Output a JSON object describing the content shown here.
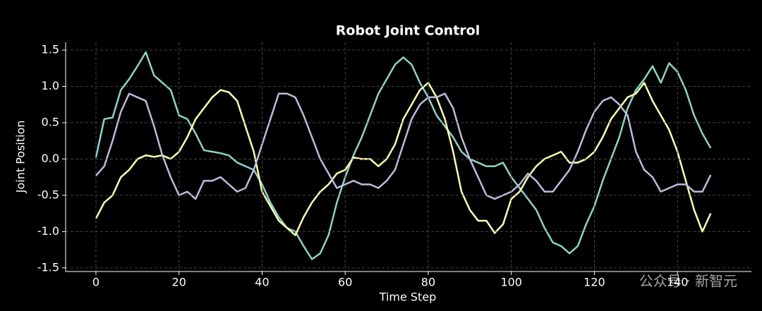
{
  "chart_data": {
    "type": "line",
    "title": "Robot Joint Control",
    "x_label": "Time Step",
    "y_label": "Joint Position",
    "watermark": "公众号 · 新智元",
    "x": [
      0,
      2,
      4,
      6,
      8,
      10,
      12,
      14,
      16,
      18,
      20,
      22,
      24,
      26,
      28,
      30,
      32,
      34,
      36,
      38,
      40,
      42,
      44,
      46,
      48,
      50,
      52,
      54,
      56,
      58,
      60,
      62,
      64,
      66,
      68,
      70,
      72,
      74,
      76,
      78,
      80,
      82,
      84,
      86,
      88,
      90,
      92,
      94,
      96,
      98,
      100,
      102,
      104,
      106,
      108,
      110,
      112,
      114,
      116,
      118,
      120,
      122,
      124,
      126,
      128,
      130,
      132,
      134,
      136,
      138,
      140,
      142,
      144,
      146,
      148
    ],
    "series": [
      {
        "color": "#8dd3c7",
        "values": [
          0.02,
          0.55,
          0.57,
          0.95,
          1.1,
          1.28,
          1.47,
          1.15,
          1.05,
          0.95,
          0.6,
          0.55,
          0.35,
          0.12,
          0.1,
          0.08,
          0.05,
          -0.05,
          -0.1,
          -0.15,
          -0.35,
          -0.6,
          -0.8,
          -0.95,
          -1.0,
          -1.2,
          -1.38,
          -1.3,
          -1.05,
          -0.6,
          -0.25,
          0.05,
          0.3,
          0.6,
          0.9,
          1.1,
          1.3,
          1.4,
          1.3,
          1.05,
          0.85,
          0.6,
          0.45,
          0.3,
          0.1,
          0.0,
          -0.05,
          -0.1,
          -0.1,
          -0.05,
          -0.25,
          -0.4,
          -0.55,
          -0.7,
          -0.95,
          -1.15,
          -1.2,
          -1.3,
          -1.2,
          -0.9,
          -0.65,
          -0.3,
          0.0,
          0.3,
          0.7,
          0.95,
          1.1,
          1.28,
          1.05,
          1.32,
          1.2,
          0.95,
          0.6,
          0.35,
          0.15
        ]
      },
      {
        "color": "#ffffb3",
        "values": [
          -0.82,
          -0.6,
          -0.5,
          -0.25,
          -0.15,
          0.0,
          0.05,
          0.03,
          0.05,
          0.0,
          0.1,
          0.3,
          0.55,
          0.7,
          0.85,
          0.95,
          0.92,
          0.8,
          0.45,
          0.1,
          -0.45,
          -0.65,
          -0.85,
          -0.95,
          -1.05,
          -0.8,
          -0.6,
          -0.45,
          -0.35,
          -0.2,
          -0.15,
          0.02,
          0.0,
          0.0,
          -0.1,
          0.0,
          0.2,
          0.55,
          0.75,
          0.95,
          1.05,
          0.85,
          0.55,
          0.1,
          -0.45,
          -0.7,
          -0.85,
          -0.85,
          -1.02,
          -0.9,
          -0.55,
          -0.45,
          -0.25,
          -0.1,
          0.0,
          0.05,
          0.1,
          -0.05,
          -0.05,
          0.0,
          0.1,
          0.3,
          0.55,
          0.7,
          0.85,
          0.9,
          1.05,
          0.8,
          0.6,
          0.4,
          0.1,
          -0.3,
          -0.7,
          -1.0,
          -0.75
        ]
      },
      {
        "color": "#bebada",
        "values": [
          -0.23,
          -0.1,
          0.25,
          0.65,
          0.9,
          0.85,
          0.8,
          0.45,
          0.05,
          -0.25,
          -0.5,
          -0.45,
          -0.55,
          -0.3,
          -0.3,
          -0.25,
          -0.35,
          -0.45,
          -0.4,
          -0.15,
          0.2,
          0.55,
          0.9,
          0.9,
          0.85,
          0.6,
          0.3,
          0.0,
          -0.2,
          -0.4,
          -0.35,
          -0.3,
          -0.35,
          -0.35,
          -0.4,
          -0.3,
          -0.15,
          0.2,
          0.55,
          0.75,
          0.85,
          0.85,
          0.9,
          0.7,
          0.3,
          0.0,
          -0.25,
          -0.5,
          -0.55,
          -0.5,
          -0.45,
          -0.35,
          -0.2,
          -0.3,
          -0.45,
          -0.45,
          -0.3,
          -0.15,
          0.1,
          0.4,
          0.65,
          0.8,
          0.85,
          0.75,
          0.6,
          0.1,
          -0.15,
          -0.25,
          -0.45,
          -0.4,
          -0.35,
          -0.35,
          -0.45,
          -0.45,
          -0.22
        ]
      }
    ],
    "xlim": [
      -7.3,
      157.8
    ],
    "ylim": [
      -1.55,
      1.607
    ],
    "xticks": [
      0,
      20,
      40,
      60,
      80,
      100,
      120,
      140
    ],
    "yticks": [
      {
        "value": -1.5,
        "label": "-1.5"
      },
      {
        "value": -1.0,
        "label": "-1.0"
      },
      {
        "value": -0.5,
        "label": "-0.5"
      },
      {
        "value": 0.0,
        "label": "0.0"
      },
      {
        "value": 0.5,
        "label": "0.5"
      },
      {
        "value": 1.0,
        "label": "1.0"
      },
      {
        "value": 1.5,
        "label": "1.5"
      }
    ],
    "grid": true
  }
}
